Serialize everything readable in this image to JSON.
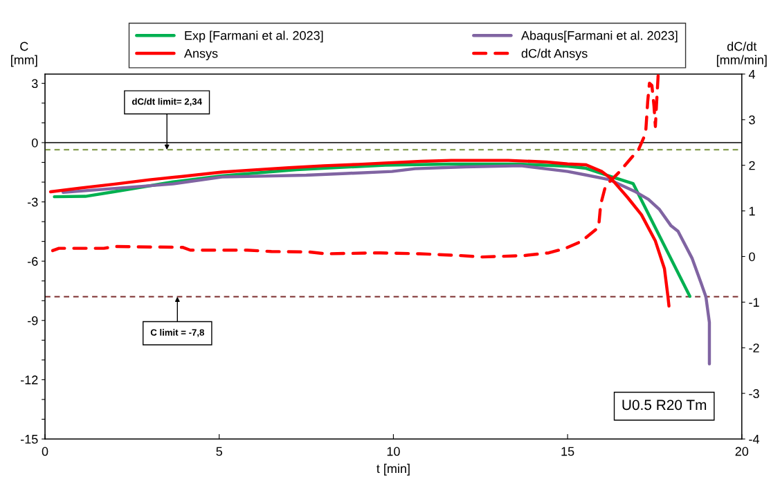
{
  "chart_data": {
    "type": "line",
    "xlabel": "t [min]",
    "ylabel": "C\n[mm]",
    "y2label": "dC/dt\n[mm/min]",
    "xlim": [
      0,
      20
    ],
    "xticks": [
      0,
      5,
      10,
      15,
      20
    ],
    "ylim": [
      -15,
      3.47
    ],
    "yticks": [
      -15,
      {
        "value": -14,
        "label": null
      },
      {
        "value": -13,
        "label": null
      },
      -12,
      {
        "value": -11,
        "label": null
      },
      {
        "value": -10,
        "label": null
      },
      -9,
      {
        "value": -8,
        "label": null
      },
      {
        "value": -7,
        "label": null
      },
      -6,
      {
        "value": -5,
        "label": null
      },
      {
        "value": -4,
        "label": null
      },
      -3,
      {
        "value": -2,
        "label": null
      },
      {
        "value": -1,
        "label": null
      },
      0,
      {
        "value": 1,
        "label": null
      },
      {
        "value": 2,
        "label": null
      },
      3
    ],
    "y2lim": [
      -4,
      4
    ],
    "y2ticks": [
      -4,
      -3,
      -2,
      -1,
      0,
      1,
      2,
      3,
      4
    ],
    "grid": false,
    "legend": "top",
    "series": [
      {
        "name": "Exp [Farmani et al. 2023]",
        "color": "#00b050",
        "line_style": "solid",
        "x": [
          0.27,
          1.16,
          1.97,
          3.67,
          5.08,
          7.22,
          9.77,
          11.6,
          13.6,
          15.0,
          15.53,
          16.25,
          16.88,
          18.51
        ],
        "values": [
          -2.74,
          -2.72,
          -2.49,
          -1.99,
          -1.68,
          -1.37,
          -1.14,
          -1.09,
          -1.09,
          -1.19,
          -1.3,
          -1.72,
          -2.07,
          -7.78
        ]
      },
      {
        "name": "Abaqus[Farmani et al. 2023]",
        "color": "#8064a2",
        "line_style": "solid",
        "x": [
          0.52,
          3.67,
          5.08,
          7.5,
          8.65,
          9.96,
          10.62,
          12.07,
          13.66,
          15.0,
          15.53,
          16.19,
          16.92,
          17.32,
          17.64,
          17.97,
          18.17,
          18.57,
          18.83,
          18.97,
          19.07,
          19.07
        ],
        "values": [
          -2.52,
          -2.09,
          -1.74,
          -1.65,
          -1.56,
          -1.46,
          -1.32,
          -1.23,
          -1.17,
          -1.46,
          -1.64,
          -1.87,
          -2.46,
          -2.87,
          -3.39,
          -4.21,
          -4.49,
          -5.84,
          -7.1,
          -7.8,
          -9.1,
          -11.2
        ]
      },
      {
        "name": "Ansys",
        "color": "#ff0000",
        "line_style": "solid",
        "x": [
          0.16,
          1,
          2,
          3,
          4,
          5.09,
          6,
          7,
          8,
          9,
          9.77,
          10.8,
          11.66,
          13.3,
          14.4,
          15.0,
          15.53,
          15.99,
          16.25,
          16.72,
          17.12,
          17.52,
          17.78,
          17.88,
          17.91
        ],
        "values": [
          -2.49,
          -2.3,
          -2.1,
          -1.88,
          -1.7,
          -1.49,
          -1.38,
          -1.27,
          -1.17,
          -1.1,
          -1.03,
          -0.95,
          -0.9,
          -0.9,
          -0.98,
          -1.08,
          -1.12,
          -1.47,
          -1.82,
          -2.77,
          -3.65,
          -4.98,
          -6.38,
          -7.78,
          -8.27
        ]
      },
      {
        "name": "dC/dt Ansys",
        "color": "#ff0000",
        "line_style": "dashed",
        "axis": "y2",
        "x": [
          0.22,
          0.4,
          1.69,
          2.04,
          3.96,
          4.17,
          5.8,
          6.5,
          7.57,
          8.07,
          9.63,
          10.76,
          11.94,
          12.55,
          13.74,
          14.46,
          14.94,
          15.39,
          15.89,
          15.95,
          16.09,
          16.48,
          17.04,
          17.24,
          17.3,
          17.35,
          17.42,
          17.48,
          17.52,
          17.55,
          17.6
        ],
        "values": [
          0.13,
          0.18,
          0.18,
          0.22,
          0.2,
          0.14,
          0.14,
          0.11,
          0.1,
          0.06,
          0.08,
          0.06,
          0.02,
          -0.01,
          0.02,
          0.08,
          0.18,
          0.33,
          0.64,
          1.14,
          1.55,
          1.85,
          2.35,
          2.7,
          3.4,
          3.8,
          3.75,
          3.3,
          2.85,
          3.3,
          3.98
        ]
      }
    ],
    "ref_lines": [
      {
        "axis": "y",
        "value": 0,
        "color": "#000000",
        "line_style": "solid"
      },
      {
        "axis": "y2",
        "value": 2.34,
        "label": "dC/dt limit= 2,34",
        "color": "#77933c",
        "line_style": "dashed"
      },
      {
        "axis": "y",
        "value": -7.8,
        "label": "C limit = -7,8",
        "color": "#7b2c2c",
        "line_style": "dashed"
      }
    ],
    "annotations": [
      "U0.5 R20 Tm"
    ]
  }
}
